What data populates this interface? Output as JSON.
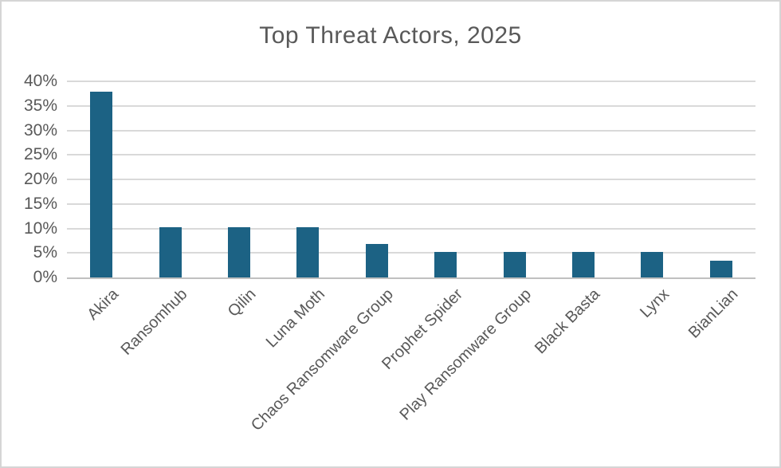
{
  "chart_data": {
    "type": "bar",
    "title": "Top Threat Actors, 2025",
    "categories": [
      "Akira",
      "Ransomhub",
      "Qilin",
      "Luna Moth",
      "Chaos Ransomware Group",
      "Prophet Spider",
      "Play Ransomware Group",
      "Black Basta",
      "Lynx",
      "BianLian"
    ],
    "values": [
      37.9,
      10.3,
      10.3,
      10.3,
      6.9,
      5.2,
      5.2,
      5.2,
      5.2,
      3.4
    ],
    "value_unit": "%",
    "xlabel": "",
    "ylabel": "",
    "ylim": [
      0,
      40
    ],
    "yticks": [
      0,
      5,
      10,
      15,
      20,
      25,
      30,
      35,
      40
    ],
    "ytick_labels": [
      "0%",
      "5%",
      "10%",
      "15%",
      "20%",
      "25%",
      "30%",
      "35%",
      "40%"
    ],
    "grid": true,
    "legend_visible": false,
    "x_label_rotation_deg": 45,
    "colors": {
      "bar": "#1c6284",
      "gridline": "#d9d9d9",
      "axis_line": "#c0c0c0",
      "text": "#595959",
      "frame_border": "#d5d5d5",
      "background": "#ffffff"
    }
  }
}
